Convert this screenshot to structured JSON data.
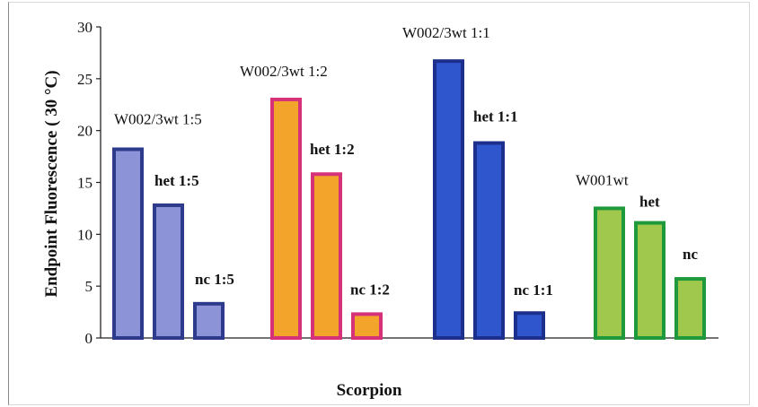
{
  "chart_data": {
    "type": "bar",
    "title": "",
    "xlabel": "Scorpion",
    "ylabel": "Endpoint Fluorescence ( 30 °C)",
    "ylim": [
      0,
      30
    ],
    "yticks": [
      0,
      5,
      10,
      15,
      20,
      25,
      30
    ],
    "grid": false,
    "legend": "none",
    "groups": [
      {
        "fill": "#8c93d6",
        "stroke": "#2e3a8c",
        "bars": [
          {
            "label": "W002/3wt 1:5",
            "value": 18.2
          },
          {
            "label": "het 1:5",
            "value": 12.8
          },
          {
            "label": "nc 1:5",
            "value": 3.3
          }
        ]
      },
      {
        "fill": "#f3a42a",
        "stroke": "#d6327a",
        "bars": [
          {
            "label": "W002/3wt 1:2",
            "value": 23.0
          },
          {
            "label": "het 1:2",
            "value": 15.8
          },
          {
            "label": "nc 1:2",
            "value": 2.3
          }
        ]
      },
      {
        "fill": "#2f56cc",
        "stroke": "#1c2f8c",
        "bars": [
          {
            "label": "W002/3wt 1:1",
            "value": 26.7
          },
          {
            "label": "het 1:1",
            "value": 18.8
          },
          {
            "label": "nc 1:1",
            "value": 2.4
          }
        ]
      },
      {
        "fill": "#9fc84c",
        "stroke": "#1e9a3c",
        "bars": [
          {
            "label": "W001wt",
            "value": 12.5
          },
          {
            "label": "het",
            "value": 11.1
          },
          {
            "label": "nc",
            "value": 5.7
          }
        ]
      }
    ]
  }
}
